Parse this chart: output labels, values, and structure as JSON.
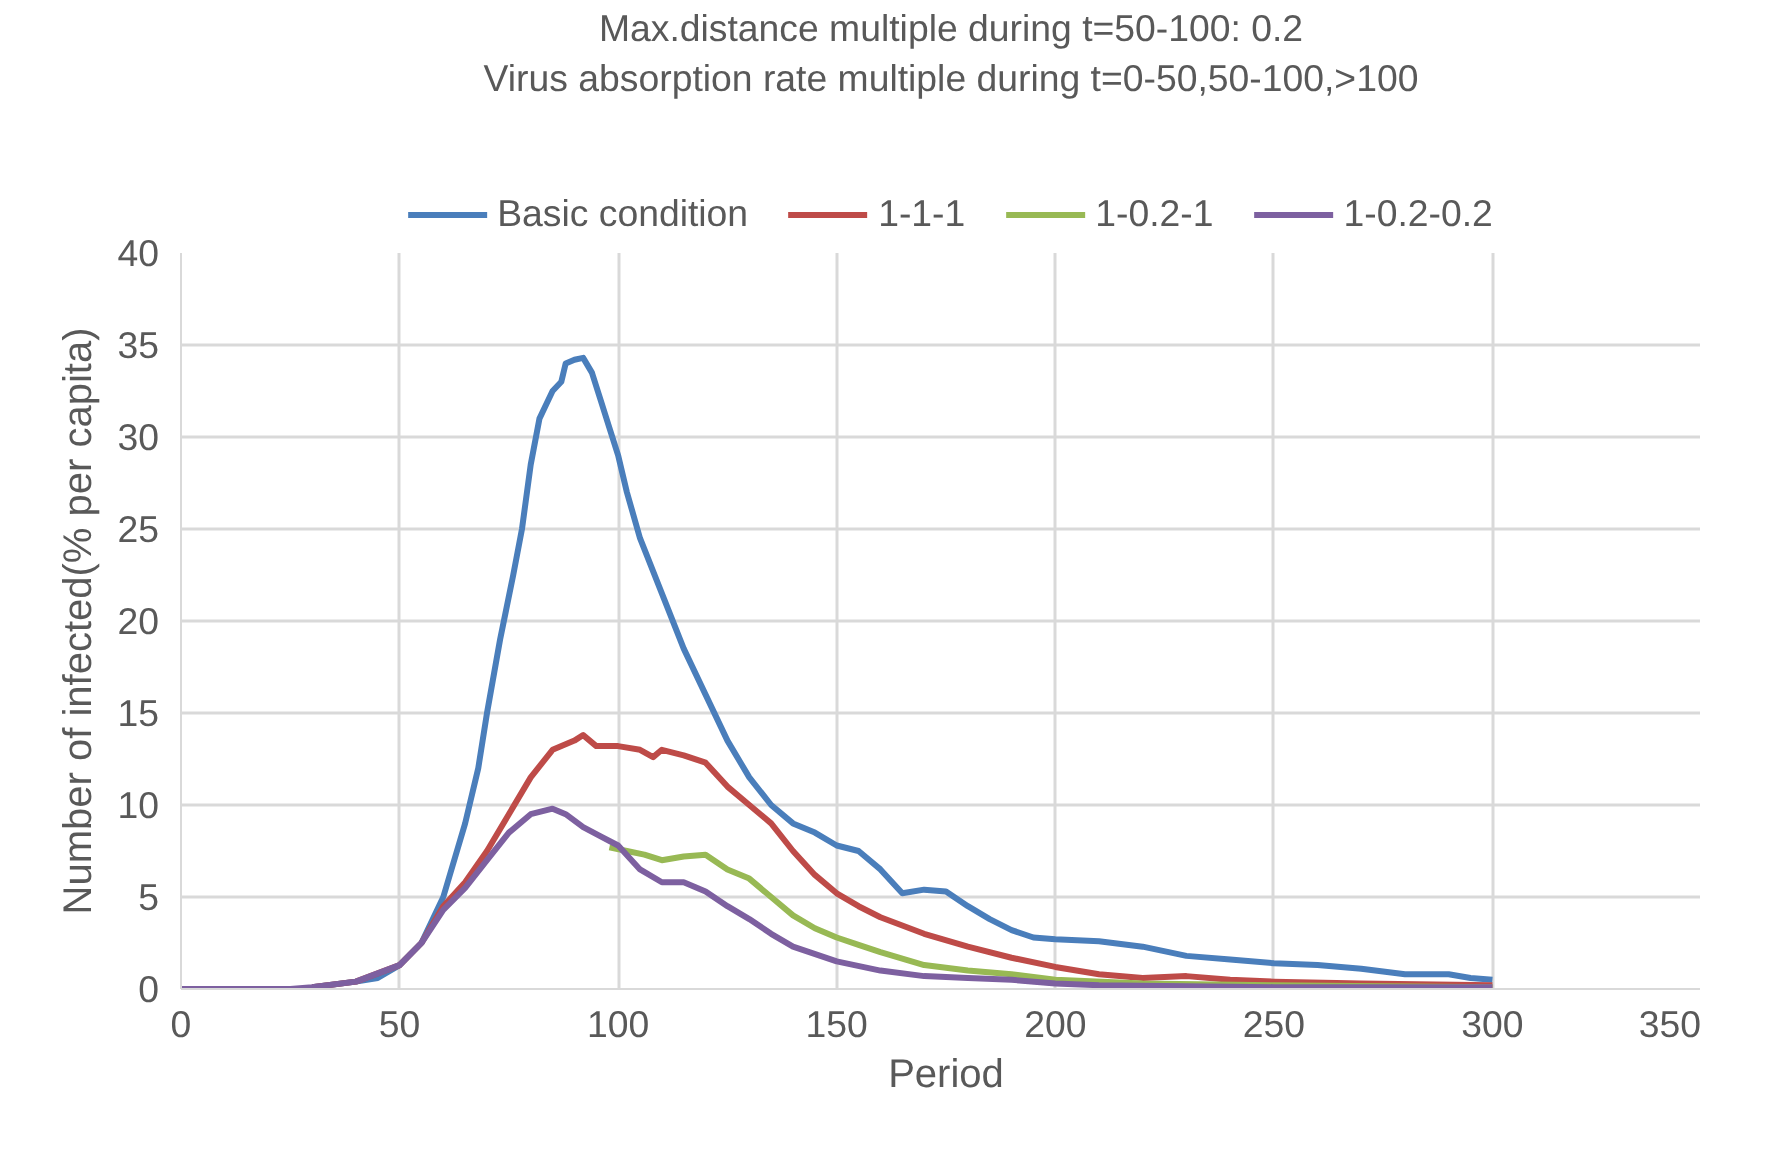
{
  "chart_data": {
    "type": "line",
    "title": "Max.distance multiple during t=50-100: 0.2",
    "subtitle": "Virus absorption rate multiple during t=0-50,50-100,>100",
    "xlabel": "Period",
    "ylabel": "Number of infected(% per capita)",
    "xlim": [
      0,
      350
    ],
    "xticks": [
      0,
      50,
      100,
      150,
      200,
      250,
      300,
      350
    ],
    "ylim": [
      0,
      40
    ],
    "yticks": [
      0,
      5,
      10,
      15,
      20,
      25,
      30,
      35,
      40
    ],
    "grid": true,
    "legend": "top",
    "line_style": "solid",
    "marker": "none",
    "series": [
      {
        "name": "Basic condition",
        "color": "#4a7ebb",
        "x": [
          30,
          40,
          45,
          50,
          55,
          60,
          65,
          68,
          70,
          73,
          76,
          78,
          80,
          82,
          85,
          87,
          88,
          90,
          92,
          94,
          96,
          98,
          100,
          102,
          105,
          110,
          115,
          120,
          125,
          130,
          135,
          140,
          145,
          150,
          155,
          160,
          165,
          170,
          175,
          180,
          185,
          190,
          195,
          200,
          210,
          220,
          230,
          240,
          250,
          260,
          270,
          280,
          290,
          295,
          300
        ],
        "values": [
          0.1,
          0.4,
          0.6,
          1.3,
          2.5,
          5,
          9,
          12,
          15,
          19,
          22.5,
          25,
          28.5,
          31,
          32.5,
          33,
          34,
          34.2,
          34.3,
          33.5,
          32,
          30.5,
          29,
          27,
          24.5,
          21.5,
          18.5,
          16,
          13.5,
          11.5,
          10,
          9,
          8.5,
          7.8,
          7.5,
          6.5,
          5.2,
          5.4,
          5.3,
          4.5,
          3.8,
          3.2,
          2.8,
          2.7,
          2.6,
          2.3,
          1.8,
          1.6,
          1.4,
          1.3,
          1.1,
          0.8,
          0.8,
          0.6,
          0.5
        ]
      },
      {
        "name": "1-1-1",
        "color": "#be4b48",
        "x": [
          30,
          40,
          50,
          55,
          60,
          65,
          70,
          75,
          80,
          85,
          90,
          92,
          95,
          100,
          105,
          108,
          110,
          115,
          120,
          125,
          130,
          135,
          140,
          145,
          150,
          155,
          160,
          170,
          180,
          190,
          200,
          210,
          220,
          230,
          240,
          250,
          270,
          300
        ],
        "values": [
          0.1,
          0.4,
          1.3,
          2.5,
          4.5,
          5.8,
          7.5,
          9.5,
          11.5,
          13,
          13.5,
          13.8,
          13.2,
          13.2,
          13,
          12.6,
          13,
          12.7,
          12.3,
          11,
          10,
          9,
          7.5,
          6.2,
          5.2,
          4.5,
          3.9,
          3,
          2.3,
          1.7,
          1.2,
          0.8,
          0.6,
          0.7,
          0.5,
          0.4,
          0.3,
          0.2
        ]
      },
      {
        "name": "1-0.2-1",
        "color": "#98b954",
        "x": [
          98,
          102,
          106,
          110,
          115,
          120,
          125,
          130,
          135,
          140,
          145,
          150,
          155,
          160,
          170,
          180,
          190,
          200,
          220,
          250,
          300
        ],
        "values": [
          7.7,
          7.5,
          7.3,
          7,
          7.2,
          7.3,
          6.5,
          6,
          5,
          4,
          3.3,
          2.8,
          2.4,
          2,
          1.3,
          1,
          0.8,
          0.5,
          0.3,
          0.2,
          0.1
        ]
      },
      {
        "name": "1-0.2-0.2",
        "color": "#7d60a0",
        "x": [
          0,
          25,
          30,
          40,
          50,
          55,
          60,
          65,
          70,
          75,
          80,
          85,
          88,
          92,
          96,
          100,
          105,
          110,
          115,
          120,
          125,
          130,
          135,
          140,
          150,
          160,
          170,
          180,
          190,
          200,
          210,
          250,
          300
        ],
        "values": [
          0,
          0,
          0.1,
          0.4,
          1.3,
          2.5,
          4.3,
          5.5,
          7,
          8.5,
          9.5,
          9.8,
          9.5,
          8.8,
          8.3,
          7.8,
          6.5,
          5.8,
          5.8,
          5.3,
          4.5,
          3.8,
          3,
          2.3,
          1.5,
          1,
          0.7,
          0.6,
          0.5,
          0.3,
          0.2,
          0.1,
          0.1
        ]
      }
    ]
  }
}
